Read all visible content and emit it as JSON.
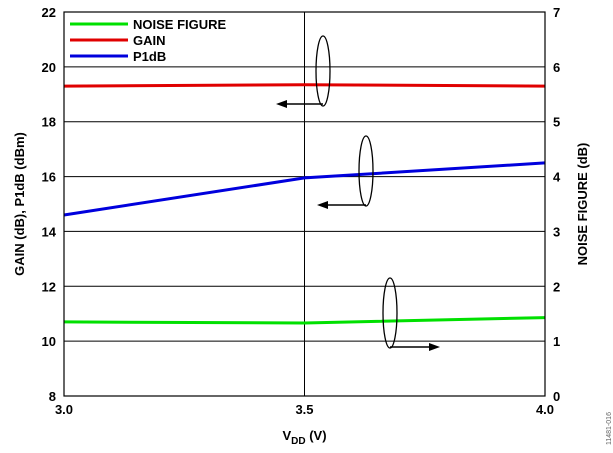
{
  "chart_data": {
    "type": "line",
    "xlabel": "V",
    "xlabel_sub": "DD",
    "xlabel_unit": " (V)",
    "ylabel_left": "GAIN (dB), P1dB (dBm)",
    "ylabel_right": "NOISE FIGURE (dB)",
    "xlim": [
      3.0,
      4.0
    ],
    "ylim_left": [
      8,
      22
    ],
    "ylim_right": [
      0,
      7
    ],
    "x_ticks": [
      "3.0",
      "3.5",
      "4.0"
    ],
    "y_ticks_left": [
      "8",
      "10",
      "12",
      "14",
      "16",
      "18",
      "20",
      "22"
    ],
    "y_ticks_right": [
      "0",
      "1",
      "2",
      "3",
      "4",
      "5",
      "6",
      "7"
    ],
    "grid": true,
    "legend_position": "top-left",
    "figure_id": "11481-016",
    "series": [
      {
        "name": "NOISE FIGURE",
        "axis": "right",
        "color": "#00e000",
        "x": [
          3.0,
          3.5,
          4.0
        ],
        "y": [
          1.35,
          1.33,
          1.43
        ]
      },
      {
        "name": "GAIN",
        "axis": "left",
        "color": "#e00000",
        "x": [
          3.0,
          3.5,
          4.0
        ],
        "y": [
          19.3,
          19.35,
          19.3
        ]
      },
      {
        "name": "P1dB",
        "axis": "left",
        "color": "#0000dd",
        "x": [
          3.0,
          3.5,
          4.0
        ],
        "y": [
          14.6,
          15.95,
          16.5
        ]
      }
    ],
    "annotations": [
      {
        "points_to": "left",
        "series": "GAIN"
      },
      {
        "points_to": "left",
        "series": "P1dB"
      },
      {
        "points_to": "right",
        "series": "NOISE FIGURE"
      }
    ]
  }
}
